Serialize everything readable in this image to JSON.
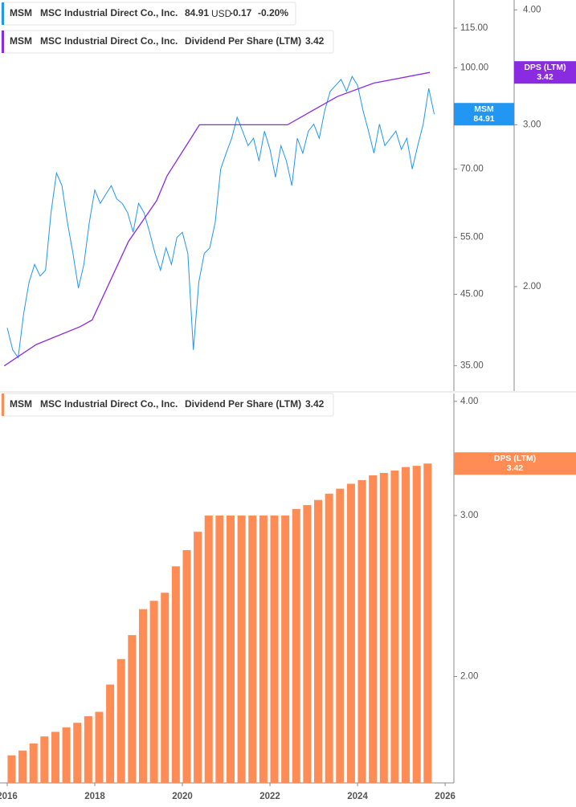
{
  "chart_data": [
    {
      "type": "line",
      "series": [
        {
          "ticker": "MSM",
          "name": "MSC Industrial Direct Co., Inc.",
          "color": "#2196f3",
          "currency": "USD",
          "change": -0.17,
          "change_pct": "-0.20%",
          "tag": "MSM",
          "x": [
            2016.0,
            2016.125,
            2016.25,
            2016.375,
            2016.5,
            2016.625,
            2016.75,
            2016.875,
            2017.0,
            2017.125,
            2017.25,
            2017.375,
            2017.5,
            2017.625,
            2017.75,
            2017.875,
            2018.0,
            2018.125,
            2018.25,
            2018.375,
            2018.5,
            2018.625,
            2018.75,
            2018.875,
            2019.0,
            2019.125,
            2019.25,
            2019.375,
            2019.5,
            2019.625,
            2019.75,
            2019.875,
            2020.0,
            2020.125,
            2020.25,
            2020.375,
            2020.5,
            2020.625,
            2020.75,
            2020.875,
            2021.0,
            2021.125,
            2021.25,
            2021.375,
            2021.5,
            2021.625,
            2021.75,
            2021.875,
            2022.0,
            2022.125,
            2022.25,
            2022.375,
            2022.5,
            2022.625,
            2022.75,
            2022.875,
            2023.0,
            2023.125,
            2023.25,
            2023.375,
            2023.5,
            2023.625,
            2023.75,
            2023.875,
            2024.0,
            2024.125,
            2024.25,
            2024.375,
            2024.5,
            2024.625,
            2024.75,
            2024.875,
            2025.0,
            2025.125,
            2025.25,
            2025.375,
            2025.5,
            2025.625,
            2025.75
          ],
          "values": [
            40,
            37,
            36,
            42,
            47,
            50,
            48,
            49,
            60,
            69,
            66,
            58,
            52,
            46,
            50,
            58,
            65,
            62,
            64,
            66,
            63,
            62,
            60,
            56,
            62,
            60,
            56,
            52,
            49,
            53,
            50,
            55,
            56,
            52,
            37,
            47,
            52,
            53,
            58,
            70,
            74,
            78,
            84,
            80,
            76,
            78,
            72,
            80,
            75,
            68,
            76,
            72,
            66,
            78,
            74,
            80,
            82,
            78,
            86,
            92,
            94,
            96,
            92,
            97,
            94,
            86,
            80,
            74,
            82,
            76,
            78,
            80,
            75,
            78,
            70,
            76,
            82,
            93,
            84.91
          ]
        },
        {
          "ticker": "MSM",
          "name": "MSC Industrial Direct Co., Inc.",
          "metric": "Dividend Per Share (LTM)",
          "color": "#8a2be2",
          "axis": "y2",
          "tag": "DPS (LTM)",
          "x": [
            2015.93,
            2016.66,
            2017.67,
            2017.94,
            2018.77,
            2019.41,
            2019.65,
            2020.39,
            2021.34,
            2022.4,
            2023.54,
            2024.37,
            2025.65
          ],
          "values": [
            1.64,
            1.73,
            1.81,
            1.84,
            2.24,
            2.48,
            2.64,
            3.0,
            3.0,
            3.0,
            3.22,
            3.33,
            3.42
          ]
        }
      ],
      "ylim": [
        32,
        127
      ],
      "ylog": true,
      "yticks": [
        {
          "value": 35,
          "label": "35.00"
        },
        {
          "value": 45,
          "label": "45.00"
        },
        {
          "value": 55,
          "label": "55.00"
        },
        {
          "value": 70,
          "label": "70.00"
        },
        {
          "value": 100,
          "label": "100.00"
        },
        {
          "value": 115,
          "label": "115.00"
        }
      ],
      "y2lim": [
        1.54,
        4.1
      ],
      "y2log": true,
      "y2ticks": [
        {
          "value": 2,
          "label": "2.00"
        },
        {
          "value": 3,
          "label": "3.00"
        },
        {
          "value": 4,
          "label": "4.00"
        }
      ],
      "xlim": [
        2015.835,
        2026.2
      ]
    },
    {
      "type": "bar",
      "ticker": "MSM",
      "name": "MSC Industrial Direct Co., Inc.",
      "metric": "Dividend Per Share (LTM)",
      "tag": "DPS (LTM)",
      "color": "#ff8c55",
      "x": [
        2016.1,
        2016.35,
        2016.6,
        2016.85,
        2017.1,
        2017.35,
        2017.6,
        2017.85,
        2018.1,
        2018.35,
        2018.6,
        2018.85,
        2019.1,
        2019.35,
        2019.6,
        2019.85,
        2020.1,
        2020.35,
        2020.6,
        2020.85,
        2021.1,
        2021.35,
        2021.6,
        2021.85,
        2022.1,
        2022.35,
        2022.6,
        2022.85,
        2023.1,
        2023.35,
        2023.6,
        2023.85,
        2024.1,
        2024.35,
        2024.6,
        2024.85,
        2025.1,
        2025.35,
        2025.6
      ],
      "values": [
        1.64,
        1.66,
        1.69,
        1.72,
        1.74,
        1.76,
        1.78,
        1.81,
        1.83,
        1.96,
        2.09,
        2.22,
        2.37,
        2.42,
        2.47,
        2.64,
        2.75,
        2.88,
        3.0,
        3.0,
        3.0,
        3.0,
        3.0,
        3.0,
        3.0,
        3.0,
        3.05,
        3.08,
        3.12,
        3.17,
        3.21,
        3.25,
        3.28,
        3.32,
        3.34,
        3.36,
        3.39,
        3.4,
        3.42
      ],
      "ylim": [
        1.53,
        4.08
      ],
      "ylog": true,
      "yticks": [
        {
          "value": 2,
          "label": "2.00"
        },
        {
          "value": 3,
          "label": "3.00"
        },
        {
          "value": 4,
          "label": "4.00"
        }
      ],
      "xlim": [
        2015.835,
        2026.2
      ],
      "xticks": [
        2016,
        2018,
        2020,
        2022,
        2024,
        2026
      ]
    }
  ]
}
